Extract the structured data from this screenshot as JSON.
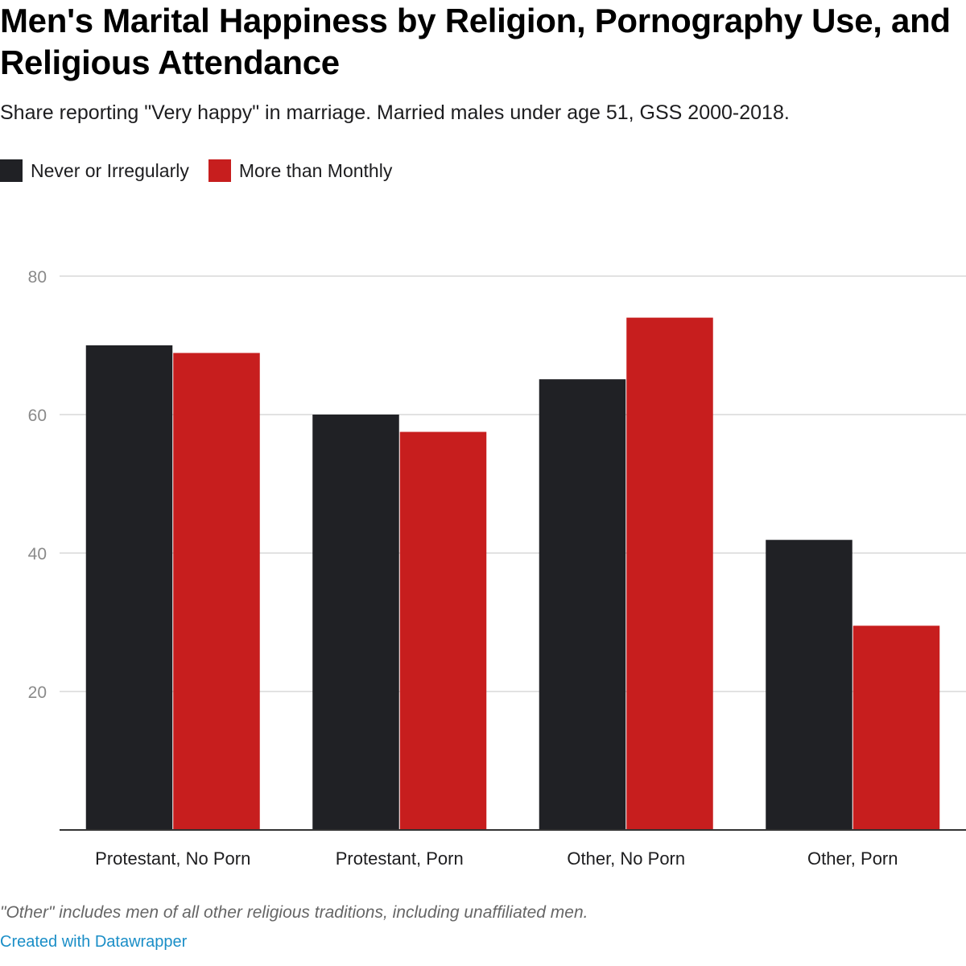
{
  "title": "Men's Marital Happiness by Religion, Pornography Use, and Religious Attendance",
  "subtitle": "Share reporting \"Very happy\" in marriage. Married males under age 51, GSS 2000-2018.",
  "legend": [
    {
      "label": "Never or Irregularly",
      "color": "#202125"
    },
    {
      "label": "More than Monthly",
      "color": "#c71e1e"
    }
  ],
  "chart_data": {
    "type": "bar",
    "categories": [
      "Protestant, No Porn",
      "Protestant, Porn",
      "Other, No Porn",
      "Other, Porn"
    ],
    "series": [
      {
        "name": "Never or Irregularly",
        "color": "#202125",
        "values": [
          70,
          60,
          65.1,
          41.9
        ]
      },
      {
        "name": "More than Monthly",
        "color": "#c71e1e",
        "values": [
          68.9,
          57.5,
          74,
          29.5
        ]
      }
    ],
    "title": "Men's Marital Happiness by Religion, Pornography Use, and Religious Attendance",
    "subtitle": "Share reporting \"Very happy\" in marriage. Married males under age 51, GSS 2000-2018.",
    "xlabel": "",
    "ylabel": "",
    "ylim": [
      0,
      80
    ],
    "yticks": [
      20,
      40,
      60,
      80
    ],
    "grid": true,
    "legend_position": "top-left"
  },
  "footnote": "\"Other\" includes men of all other religious traditions, including unaffiliated men.",
  "credit": "Created with Datawrapper"
}
